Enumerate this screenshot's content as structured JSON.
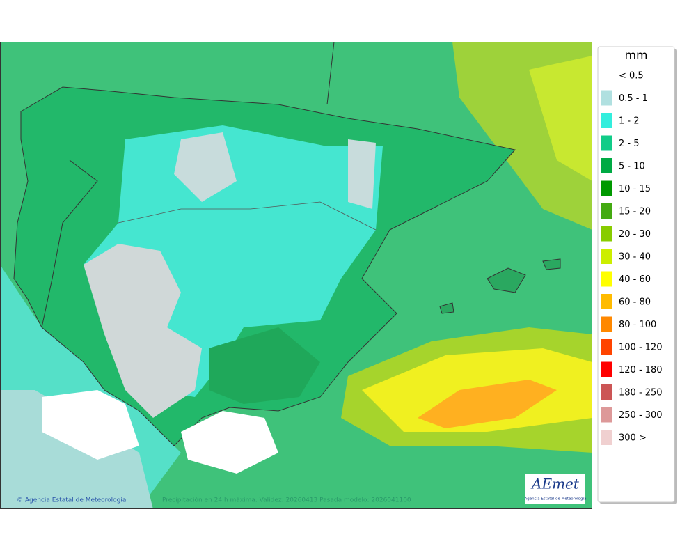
{
  "legend": {
    "unit": "mm",
    "entries": [
      {
        "label": "< 0.5",
        "color": null
      },
      {
        "label": "0.5 - 1",
        "color": "#b0e0e0"
      },
      {
        "label": "1 - 2",
        "color": "#33eedd"
      },
      {
        "label": "2 - 5",
        "color": "#11cc88"
      },
      {
        "label": "5 - 10",
        "color": "#00aa44"
      },
      {
        "label": "10 - 15",
        "color": "#009900"
      },
      {
        "label": "15 - 20",
        "color": "#44aa11"
      },
      {
        "label": "20 - 30",
        "color": "#88cc00"
      },
      {
        "label": "30 - 40",
        "color": "#ccee00"
      },
      {
        "label": "40 - 60",
        "color": "#ffff00"
      },
      {
        "label": "60 - 80",
        "color": "#ffbb00"
      },
      {
        "label": "80 - 100",
        "color": "#ff8800"
      },
      {
        "label": "100 - 120",
        "color": "#ff4400"
      },
      {
        "label": "120 - 180",
        "color": "#ff0000"
      },
      {
        "label": "180 - 250",
        "color": "#cc5555"
      },
      {
        "label": "250 - 300",
        "color": "#dd9999"
      },
      {
        "label": "300 >",
        "color": "#f0d0d0"
      }
    ]
  },
  "footer": {
    "credit": "© Agencia Estatal de Meteorología",
    "caption": "Precipitación en 24 h máxima. Validez: 20260413 Pasada modelo: 2026041100"
  },
  "logo": {
    "name": "AEmet",
    "subtitle": "Agencia Estatal de Meteorología"
  }
}
